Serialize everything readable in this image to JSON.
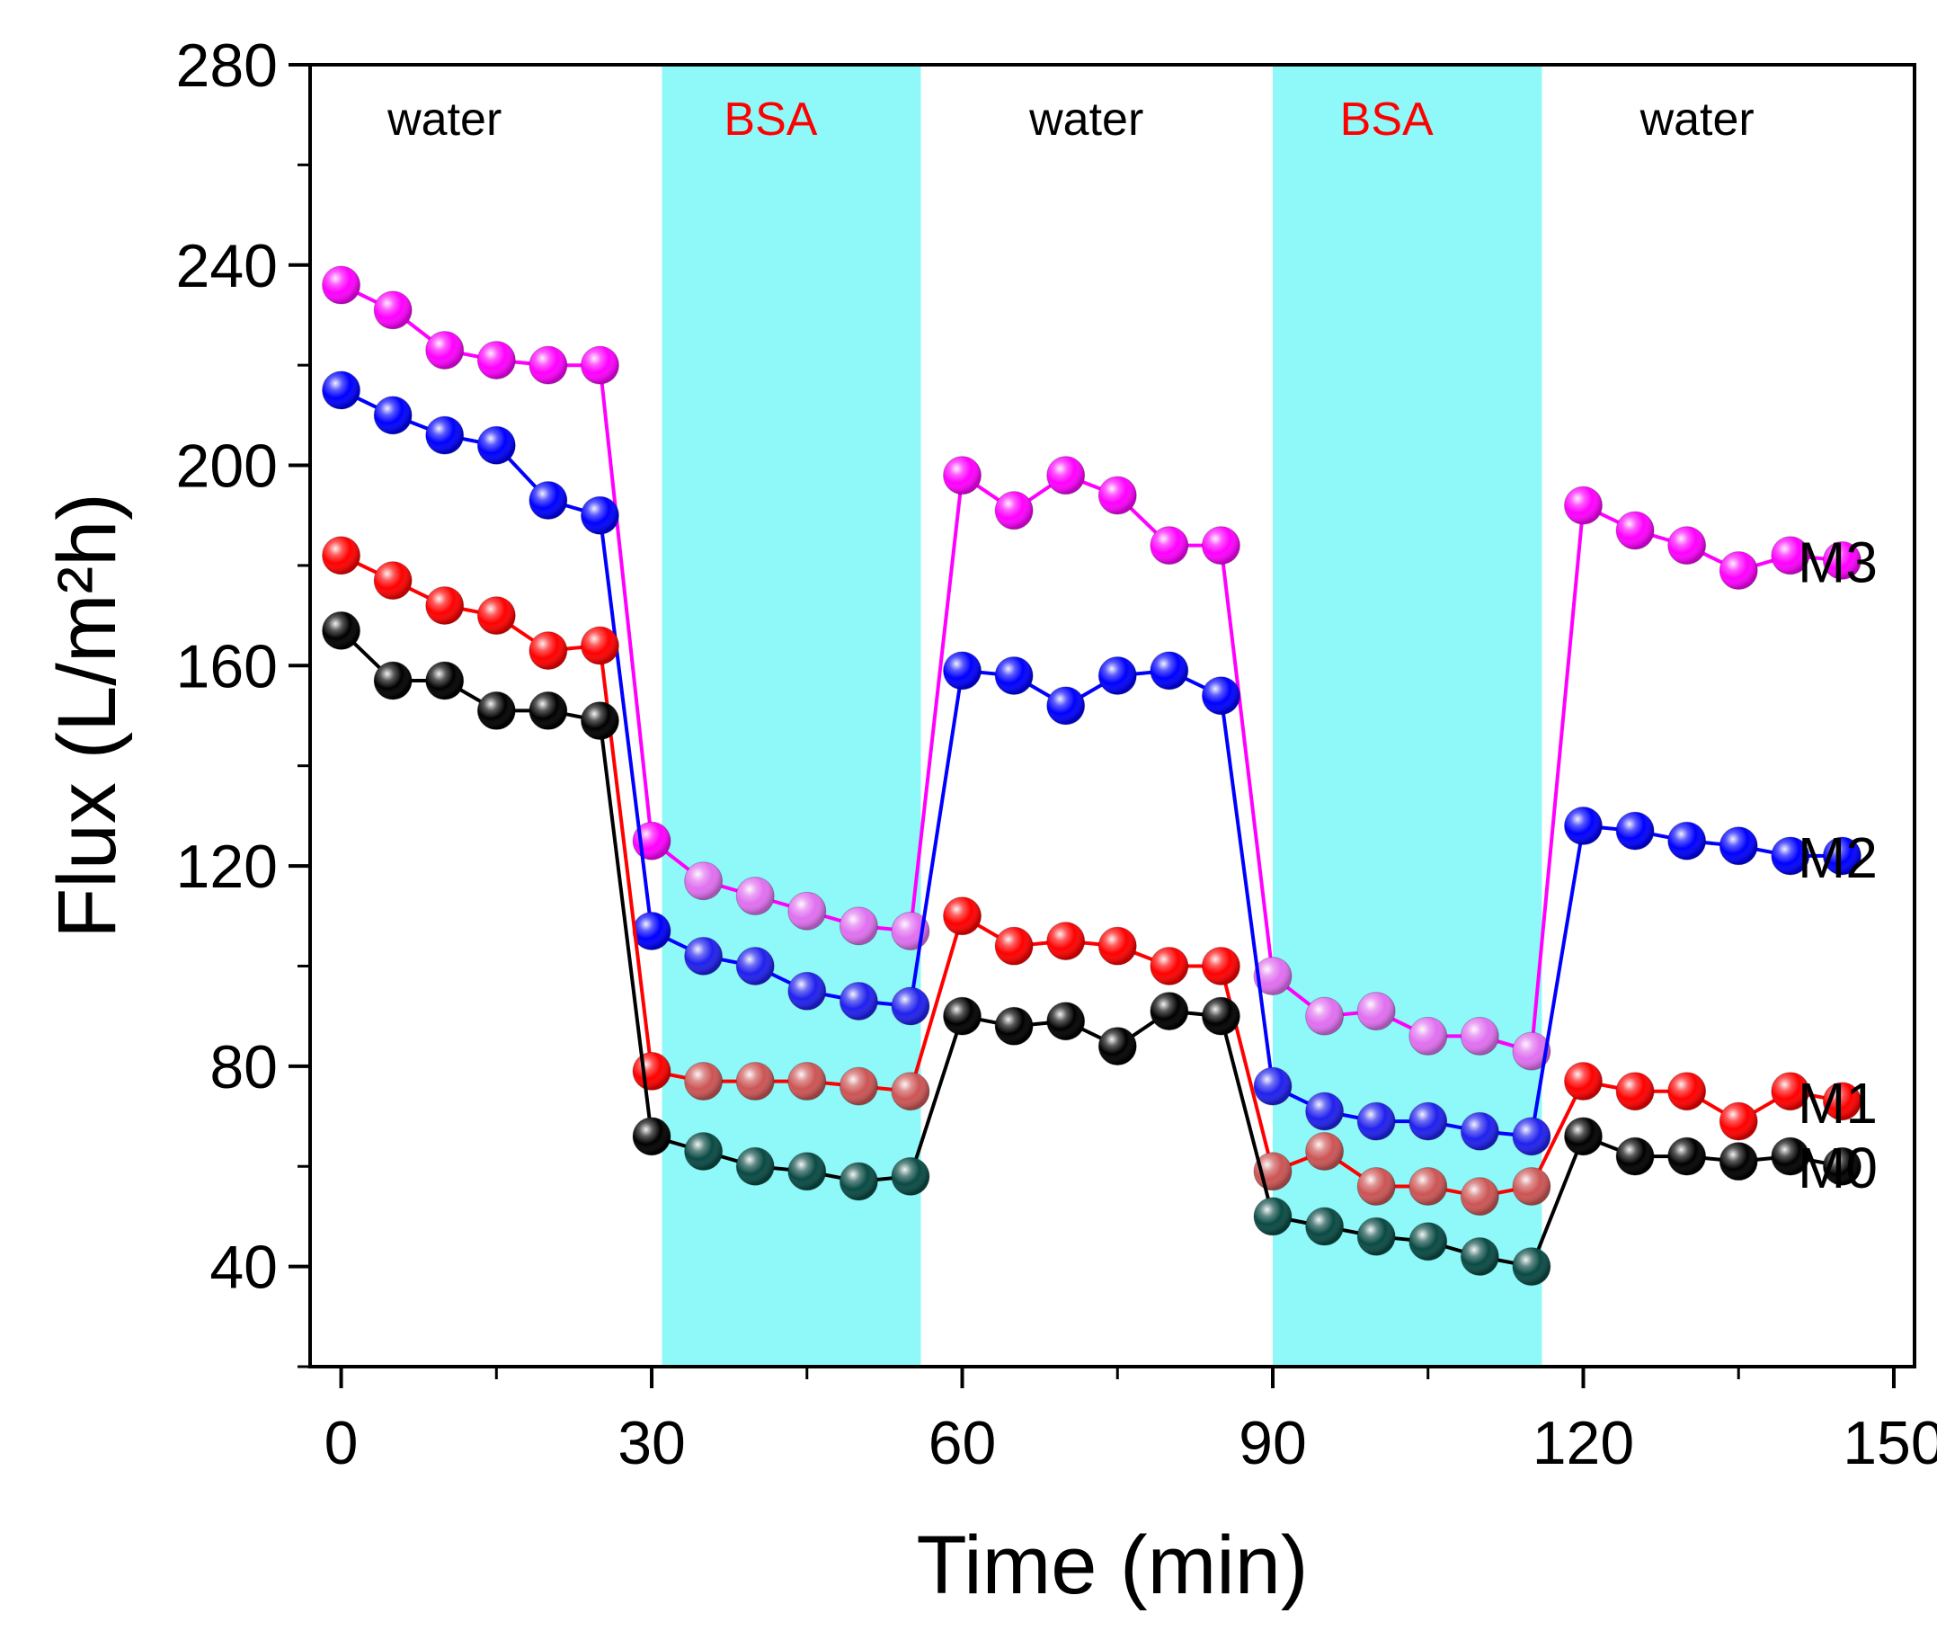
{
  "chart_data": {
    "type": "line",
    "xlabel": "Time (min)",
    "ylabel": "Flux (L/m²h)",
    "xlim": [
      -3,
      152
    ],
    "ylim": [
      20,
      280
    ],
    "xticks": [
      0,
      30,
      60,
      90,
      120,
      150
    ],
    "yticks": [
      40,
      80,
      120,
      160,
      200,
      240,
      280
    ],
    "grid": false,
    "legend": "direct labels at right end of each series",
    "regions": [
      {
        "label": "water",
        "x0": -3,
        "x1": 31,
        "shaded": false,
        "label_color": "#000000",
        "label_x": 10
      },
      {
        "label": "BSA",
        "x0": 31,
        "x1": 56,
        "shaded": true,
        "label_color": "#ff0000",
        "label_x": 41.5
      },
      {
        "label": "water",
        "x0": 56,
        "x1": 90,
        "shaded": false,
        "label_color": "#000000",
        "label_x": 72
      },
      {
        "label": "BSA",
        "x0": 90,
        "x1": 116,
        "shaded": true,
        "label_color": "#ff0000",
        "label_x": 101
      },
      {
        "label": "water",
        "x0": 116,
        "x1": 152,
        "shaded": false,
        "label_color": "#000000",
        "label_x": 131
      }
    ],
    "x": [
      0,
      5,
      10,
      15,
      20,
      25,
      30,
      35,
      40,
      45,
      50,
      55,
      60,
      65,
      70,
      75,
      80,
      85,
      90,
      95,
      100,
      105,
      110,
      115,
      120,
      125,
      130,
      135,
      140,
      145
    ],
    "series": [
      {
        "name": "M3",
        "color": "#ff00ff",
        "bsa_color": "#e070f0",
        "values": [
          236,
          231,
          223,
          221,
          220,
          220,
          125,
          117,
          114,
          111,
          108,
          107,
          198,
          191,
          198,
          194,
          184,
          184,
          98,
          90,
          91,
          86,
          86,
          83,
          192,
          187,
          184,
          179,
          182,
          181
        ]
      },
      {
        "name": "M2",
        "color": "#0000ff",
        "bsa_color": "#2020ee",
        "values": [
          215,
          210,
          206,
          204,
          193,
          190,
          107,
          102,
          100,
          95,
          93,
          92,
          159,
          158,
          152,
          158,
          159,
          154,
          76,
          71,
          69,
          69,
          67,
          66,
          128,
          127,
          125,
          124,
          122,
          122
        ]
      },
      {
        "name": "M1",
        "color": "#ff0000",
        "bsa_color": "#cc5555",
        "values": [
          182,
          177,
          172,
          170,
          163,
          164,
          79,
          77,
          77,
          77,
          76,
          75,
          110,
          104,
          105,
          104,
          100,
          100,
          59,
          63,
          56,
          56,
          54,
          56,
          77,
          75,
          75,
          69,
          75,
          73
        ]
      },
      {
        "name": "M0",
        "color": "#000000",
        "bsa_color": "#0a4a44",
        "values": [
          167,
          157,
          157,
          151,
          151,
          149,
          66,
          63,
          60,
          59,
          57,
          58,
          90,
          88,
          89,
          84,
          91,
          90,
          50,
          48,
          46,
          45,
          42,
          40,
          66,
          62,
          62,
          61,
          62,
          60
        ]
      }
    ]
  }
}
